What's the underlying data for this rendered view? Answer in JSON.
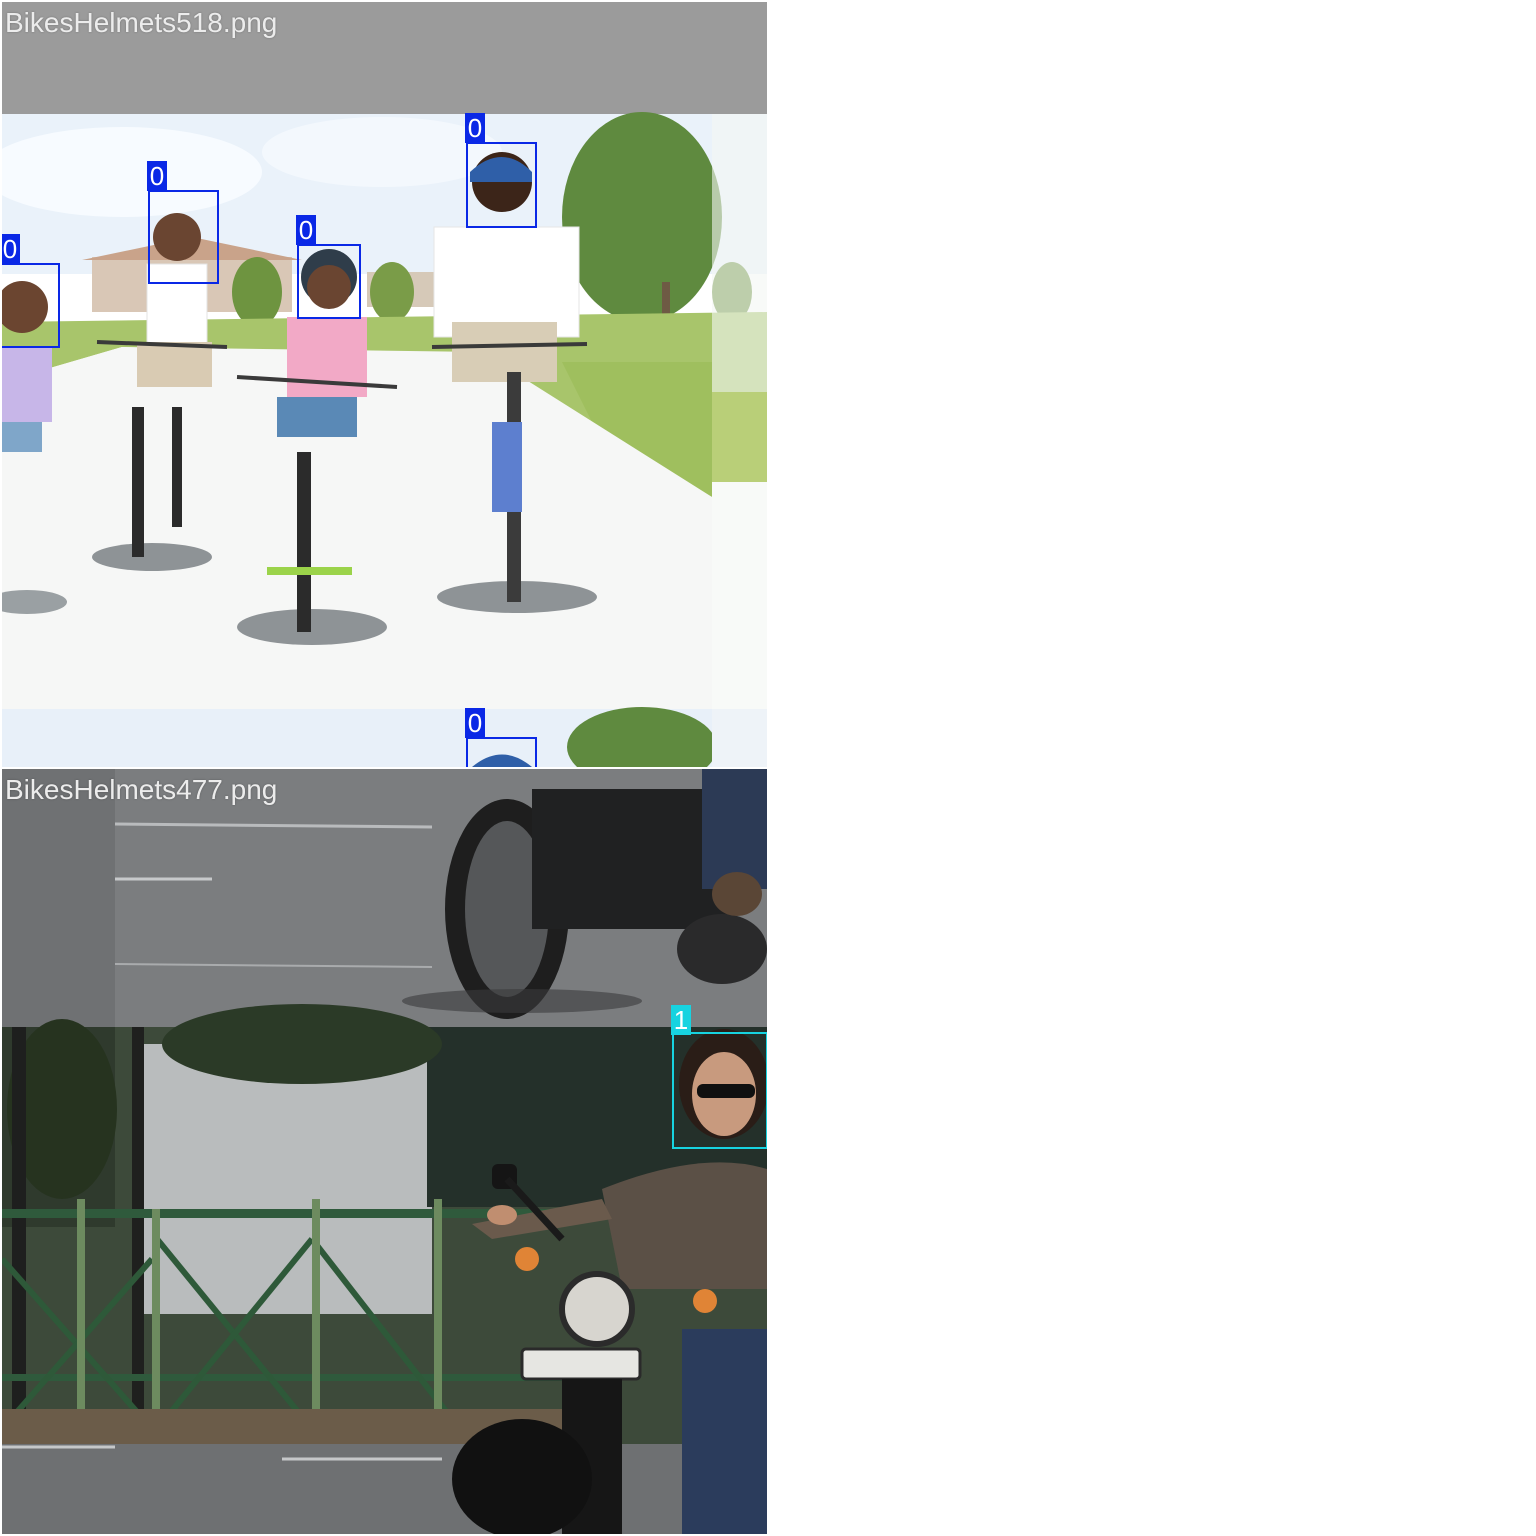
{
  "mosaic": {
    "tiles": [
      {
        "filename": "BikesHelmets518.png"
      },
      {
        "filename": "BikesHelmets477.png"
      }
    ],
    "class_colors": {
      "0": "#0a28e6",
      "1": "#17d3e0"
    },
    "detections": {
      "tile1": [
        {
          "label": "0",
          "class": "helmet"
        },
        {
          "label": "0",
          "class": "helmet"
        },
        {
          "label": "0",
          "class": "helmet"
        },
        {
          "label": "0",
          "class": "helmet"
        },
        {
          "label": "0",
          "class": "helmet"
        }
      ],
      "tile2": [
        {
          "label": "1",
          "class": "no-helmet"
        }
      ]
    }
  }
}
